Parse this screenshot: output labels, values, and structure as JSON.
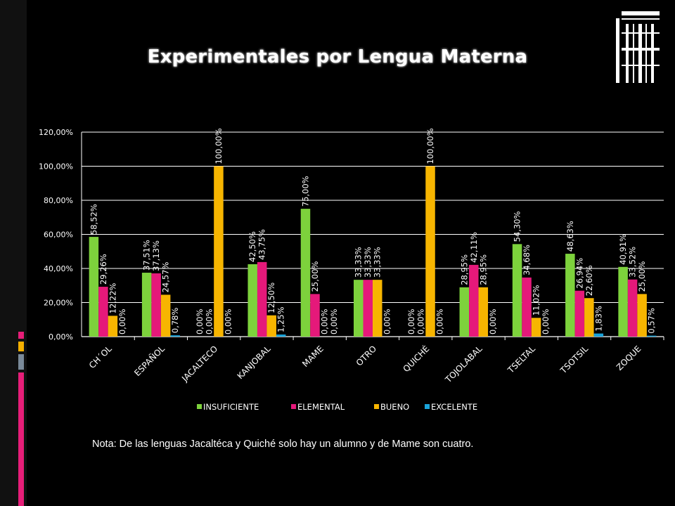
{
  "slide": {
    "title": "Experimentales por Lengua Materna",
    "note": "Nota: De las lenguas Jacaltéca y Quiché solo hay un alumno y de Mame son cuatro.",
    "accent_colors": [
      "#E61E78",
      "#F5B000",
      "#7A8A99",
      "#E61E78"
    ]
  },
  "chart_data": {
    "type": "bar",
    "title": "",
    "xlabel": "",
    "ylabel": "",
    "ylim": [
      0,
      120
    ],
    "yticks": [
      "0,00%",
      "20,00%",
      "40,00%",
      "60,00%",
      "80,00%",
      "100,00%",
      "120,00%"
    ],
    "grid": true,
    "legend_position": "bottom",
    "categories": [
      "CH´OL",
      "ESPAÑOL",
      "JACALTECO",
      "KANJOBAL",
      "MAME",
      "OTRO",
      "QUICHÉ",
      "TOJOLABAL",
      "TSELTAL",
      "TSOTSIL",
      "ZOQUE"
    ],
    "series": [
      {
        "name": "INSUFICIENTE",
        "color": "#7DD23C",
        "values": [
          58.52,
          37.51,
          0.0,
          42.5,
          75.0,
          33.33,
          0.0,
          28.95,
          54.3,
          48.63,
          40.91
        ],
        "labels": [
          "58,52%",
          "37,51%",
          "0,00%",
          "42,50%",
          "75,00%",
          "33,33%",
          "0,00%",
          "28,95%",
          "54,30%",
          "48,63%",
          "40,91%"
        ]
      },
      {
        "name": "ELEMENTAL",
        "color": "#E5197A",
        "values": [
          29.26,
          37.13,
          0.0,
          43.75,
          25.0,
          33.33,
          0.0,
          42.11,
          34.68,
          26.94,
          33.52
        ],
        "labels": [
          "29,26%",
          "37,13%",
          "0,00%",
          "43,75%",
          "25,00%",
          "33,33%",
          "0,00%",
          "42,11%",
          "34,68%",
          "26,94%",
          "33,52%"
        ]
      },
      {
        "name": "BUENO",
        "color": "#F7B500",
        "values": [
          12.22,
          24.57,
          100.0,
          12.5,
          0.0,
          33.33,
          100.0,
          28.95,
          11.02,
          22.6,
          25.0
        ],
        "labels": [
          "12,22%",
          "24,57%",
          "100,00%",
          "12,50%",
          "0,00%",
          "33,33%",
          "100,00%",
          "28,95%",
          "11,02%",
          "22,60%",
          "25,00%"
        ]
      },
      {
        "name": "EXCELENTE",
        "color": "#1AA3D9",
        "values": [
          0.0,
          0.78,
          0.0,
          1.25,
          0.0,
          0.0,
          0.0,
          0.0,
          0.0,
          1.83,
          0.57
        ],
        "labels": [
          "0,00%",
          "0,78%",
          "0,00%",
          "1,25%",
          "0,00%",
          "0,00%",
          "0,00%",
          "0,00%",
          "0,00%",
          "1,83%",
          "0,57%"
        ]
      }
    ]
  }
}
